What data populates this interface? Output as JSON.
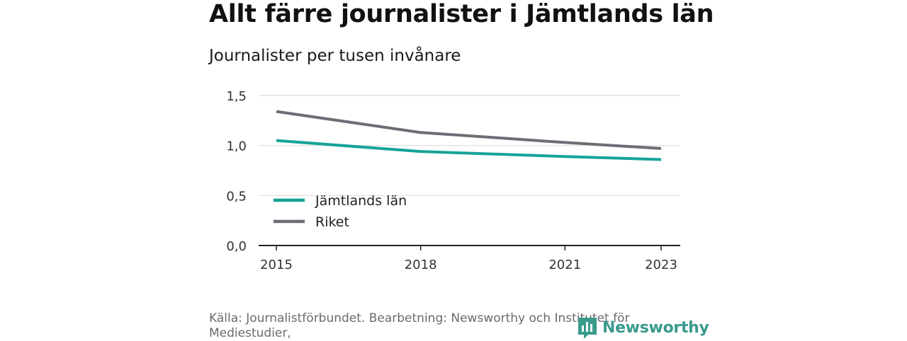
{
  "title": "Allt färre journalister i Jämtlands län",
  "subtitle": "Journalister per tusen invånare",
  "source": "Källa: Journalistförbundet. Bearbetning: Newsworthy och Institutet för Mediestudier,",
  "logo": {
    "text": "Newsworthy",
    "icon": "newsworthy-logo-icon"
  },
  "colors": {
    "jamtland": "#16a398",
    "riket": "#6e6d75",
    "grid": "#dcdcdc",
    "axis": "#222222",
    "logo": "#3a9a8c"
  },
  "chart_data": {
    "type": "line",
    "x": [
      2015,
      2018,
      2021,
      2023
    ],
    "x_ticks": [
      "2015",
      "2018",
      "2021",
      "2023"
    ],
    "y_ticks": [
      "0,0",
      "0,5",
      "1,0",
      "1,5"
    ],
    "ylim": [
      0,
      1.5
    ],
    "xlim": [
      2015,
      2023
    ],
    "grid": true,
    "legend_placement": "bottom-left",
    "series": [
      {
        "name": "Jämtlands län",
        "color": "#16a398",
        "values": [
          1.05,
          0.94,
          0.89,
          0.86
        ]
      },
      {
        "name": "Riket",
        "color": "#6e6d75",
        "values": [
          1.34,
          1.13,
          1.03,
          0.97
        ]
      }
    ]
  }
}
